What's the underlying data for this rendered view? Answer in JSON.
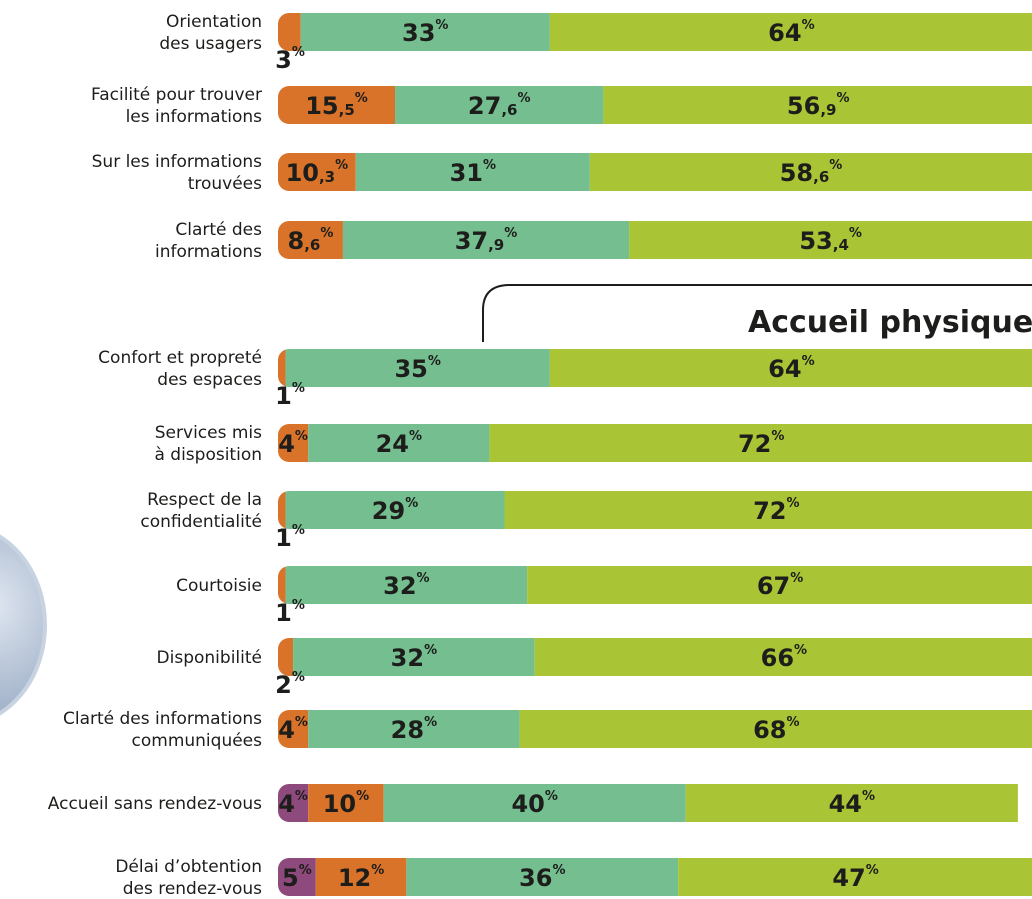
{
  "chart_data": {
    "type": "bar",
    "orientation": "horizontal",
    "stacked": true,
    "annotation": "Accueil physique",
    "categories": [
      [
        "Orientation",
        "des usagers"
      ],
      [
        "Facilité pour trouver",
        "les informations"
      ],
      [
        "Sur les informations",
        "trouvées"
      ],
      [
        "Clarté des",
        "informations"
      ],
      [
        "Confort et propreté",
        "des espaces"
      ],
      [
        "Services mis",
        "à disposition"
      ],
      [
        "Respect de la",
        "confidentialité"
      ],
      [
        "Courtoisie"
      ],
      [
        "Disponibilité"
      ],
      [
        "Clarté des informations",
        "communiquées"
      ],
      [
        "Accueil sans rendez-vous"
      ],
      [
        "Délai d’obtention",
        "des rendez-vous"
      ]
    ],
    "xlim": [
      0,
      100
    ],
    "series": [
      {
        "color": "#8e4a7c",
        "values": [
          null,
          null,
          null,
          null,
          null,
          null,
          null,
          null,
          null,
          null,
          4,
          5
        ],
        "value_labels": [
          null,
          null,
          null,
          null,
          null,
          null,
          null,
          null,
          null,
          null,
          "4%",
          "5%"
        ]
      },
      {
        "color": "#d9732a",
        "values": [
          3,
          15.5,
          10.3,
          8.6,
          1,
          4,
          1,
          1,
          2,
          4,
          10,
          12
        ],
        "value_labels": [
          "3%",
          "15,5%",
          "10,3%",
          "8,6%",
          "1%",
          "4%",
          "1%",
          "1%",
          "2%",
          "4%",
          "10%",
          "12%"
        ]
      },
      {
        "color": "#74be8f",
        "values": [
          33,
          27.6,
          31,
          37.9,
          35,
          24,
          29,
          32,
          32,
          28,
          40,
          36
        ],
        "value_labels": [
          "33%",
          "27,6%",
          "31%",
          "37,9%",
          "35%",
          "24%",
          "29%",
          "32%",
          "32%",
          "28%",
          "40%",
          "36%"
        ]
      },
      {
        "color": "#a9c435",
        "values": [
          64,
          56.9,
          58.6,
          53.4,
          64,
          72,
          72,
          67,
          66,
          68,
          44,
          47
        ],
        "value_labels": [
          "64%",
          "56,9%",
          "58,6%",
          "53,4%",
          "64%",
          "72%",
          "72%",
          "67%",
          "66%",
          "68%",
          "44%",
          "47%"
        ]
      }
    ]
  }
}
